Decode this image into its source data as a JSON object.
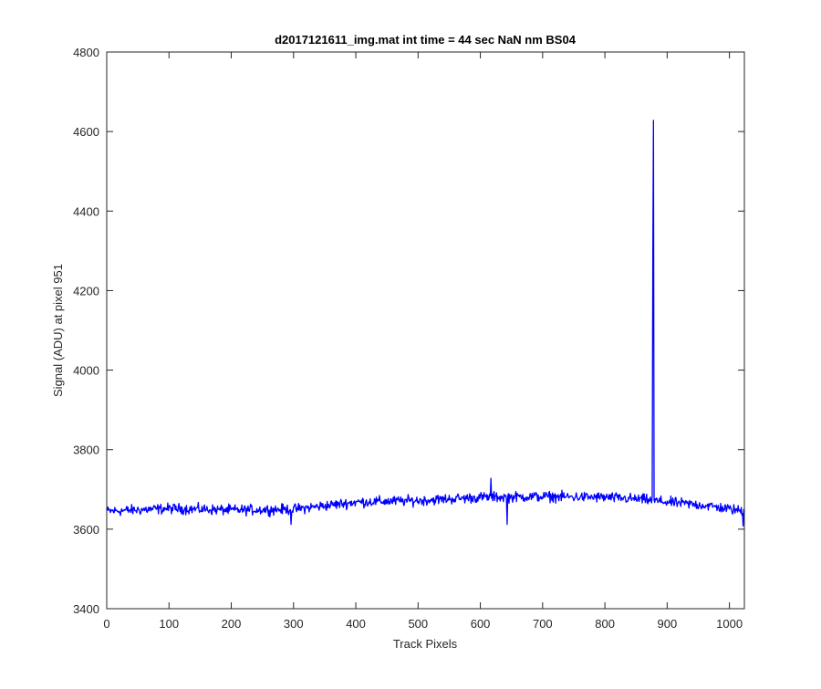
{
  "chart_data": {
    "type": "line",
    "title": "d2017121611_img.mat int time = 44 sec  NaN nm BS04",
    "xlabel": "Track Pixels",
    "ylabel": "Signal (ADU) at pixel 951",
    "xlim": [
      0,
      1024
    ],
    "ylim": [
      3400,
      4800
    ],
    "xticks": [
      0,
      100,
      200,
      300,
      400,
      500,
      600,
      700,
      800,
      900,
      1000
    ],
    "yticks": [
      3400,
      3600,
      3800,
      4000,
      4200,
      4400,
      4600,
      4800
    ],
    "grid": false,
    "legend": "none",
    "line_color": "#0000ff",
    "series": [
      {
        "x_start": 1,
        "x_end": 1024,
        "baseline_points": [
          [
            1,
            3645
          ],
          [
            100,
            3652
          ],
          [
            200,
            3648
          ],
          [
            300,
            3650
          ],
          [
            400,
            3668
          ],
          [
            500,
            3672
          ],
          [
            600,
            3680
          ],
          [
            700,
            3682
          ],
          [
            800,
            3680
          ],
          [
            860,
            3675
          ],
          [
            900,
            3668
          ],
          [
            960,
            3660
          ],
          [
            1024,
            3645
          ]
        ],
        "noise_amplitude": 12,
        "spikes": [
          {
            "x": 878,
            "value": 4628
          },
          {
            "x": 877,
            "value": 4300
          },
          {
            "x": 617,
            "value": 3728
          },
          {
            "x": 643,
            "value": 3612
          },
          {
            "x": 1022,
            "value": 3608
          },
          {
            "x": 296,
            "value": 3612
          }
        ]
      }
    ]
  }
}
